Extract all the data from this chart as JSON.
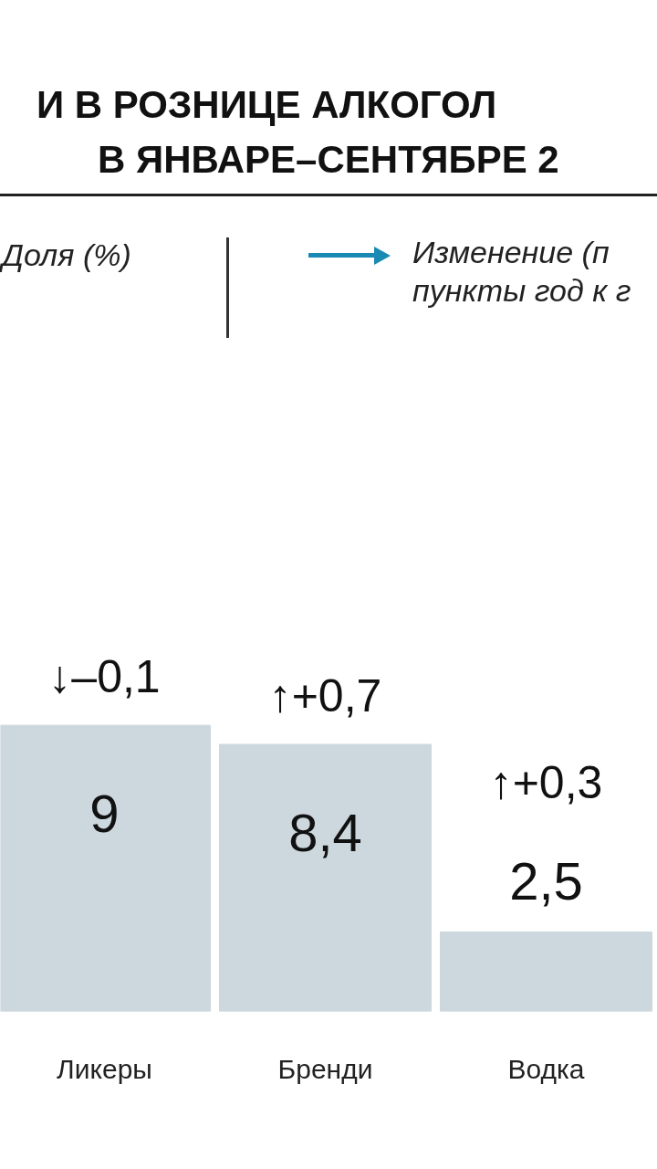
{
  "chart_data": {
    "type": "bar",
    "title": "И В РОЗНИЦЕ АЛКОГОЛ\nВ ЯНВАРЕ–СЕНТЯБРЕ 2",
    "categories": [
      "Ликеры",
      "Бренди",
      "Водка"
    ],
    "series": [
      {
        "name": "Доля (%)",
        "color": "#cdd8de",
        "values": [
          9,
          8.4,
          2.5
        ],
        "value_labels": [
          "9",
          "8,4",
          "2,5"
        ]
      }
    ],
    "annotations": [
      {
        "text": "↓–0,1",
        "x": "Ликеры",
        "y": 9
      },
      {
        "text": "↑+0,7",
        "x": "Бренди",
        "y": 8.4
      },
      {
        "text": "↑+0,3",
        "x": "Водка",
        "y": 2.5
      },
      "Изменение (п\nпункты год к г"
    ],
    "grid": false
  }
}
